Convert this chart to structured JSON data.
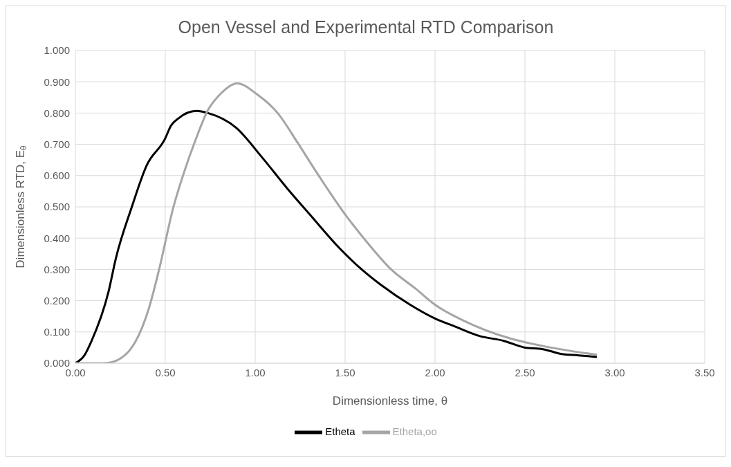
{
  "chart_data": {
    "type": "line",
    "title": "Open Vessel and Experimental RTD Comparison",
    "xlabel": "Dimensionless time, θ",
    "ylabel": "Dimensionless RTD, E$_{θ}$",
    "series": [
      {
        "name": "Etheta",
        "color": "#000000",
        "x": [
          0,
          0.05,
          0.089,
          0.184,
          0.225,
          0.314,
          0.396,
          0.498,
          0.532,
          0.573,
          0.673,
          0.737,
          0.894,
          1.037,
          1.194,
          1.303,
          1.467,
          1.59,
          1.698,
          1.862,
          2.0,
          2.108,
          2.247,
          2.38,
          2.5,
          2.6,
          2.7,
          2.8,
          2.9
        ],
        "values": [
          0,
          0.025,
          0.07,
          0.228,
          0.335,
          0.5,
          0.632,
          0.717,
          0.76,
          0.783,
          0.807,
          0.8,
          0.753,
          0.659,
          0.548,
          0.476,
          0.369,
          0.301,
          0.251,
          0.187,
          0.143,
          0.118,
          0.087,
          0.072,
          0.05,
          0.045,
          0.03,
          0.025,
          0.02
        ]
      },
      {
        "name": "Etheta,oo",
        "color": "#a5a5a5",
        "x": [
          0,
          0.15,
          0.2,
          0.25,
          0.3,
          0.334,
          0.409,
          0.464,
          0.546,
          0.6,
          0.669,
          0.737,
          0.805,
          0.9,
          1.01,
          1.125,
          1.235,
          1.344,
          1.5,
          1.616,
          1.754,
          1.893,
          2.0,
          2.16,
          2.42,
          2.6,
          2.9
        ],
        "values": [
          0,
          0,
          0.003,
          0.015,
          0.04,
          0.069,
          0.176,
          0.296,
          0.501,
          0.603,
          0.715,
          0.809,
          0.86,
          0.895,
          0.86,
          0.8,
          0.706,
          0.608,
          0.476,
          0.391,
          0.301,
          0.238,
          0.187,
          0.136,
          0.079,
          0.055,
          0.027
        ]
      }
    ],
    "xlim": [
      0,
      3.5
    ],
    "xticks": [
      {
        "value": 0,
        "label": "0.00"
      },
      {
        "value": 0.5,
        "label": "0.50"
      },
      {
        "value": 1,
        "label": "1.00"
      },
      {
        "value": 1.5,
        "label": "1.50"
      },
      {
        "value": 2,
        "label": "2.00"
      },
      {
        "value": 2.5,
        "label": "2.50"
      },
      {
        "value": 3,
        "label": "3.00"
      },
      {
        "value": 3.5,
        "label": "3.50"
      }
    ],
    "ylim": [
      0,
      1
    ],
    "yticks": [
      {
        "value": 0,
        "label": "0.000"
      },
      {
        "value": 0.1,
        "label": "0.100"
      },
      {
        "value": 0.2,
        "label": "0.200"
      },
      {
        "value": 0.3,
        "label": "0.300"
      },
      {
        "value": 0.4,
        "label": "0.400"
      },
      {
        "value": 0.5,
        "label": "0.500"
      },
      {
        "value": 0.6,
        "label": "0.600"
      },
      {
        "value": 0.7,
        "label": "0.700"
      },
      {
        "value": 0.8,
        "label": "0.800"
      },
      {
        "value": 0.9,
        "label": "0.900"
      },
      {
        "value": 1,
        "label": "1.000"
      }
    ],
    "grid": true,
    "legend": "bottom",
    "marker": "none",
    "line_style": "solid"
  }
}
